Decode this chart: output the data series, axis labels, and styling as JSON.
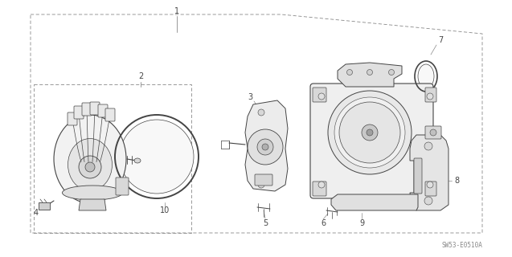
{
  "bg_color": "#ffffff",
  "line_color": "#444444",
  "gray_line": "#888888",
  "watermark": "SW53-E0510A",
  "figsize": [
    6.37,
    3.2
  ],
  "dpi": 100
}
